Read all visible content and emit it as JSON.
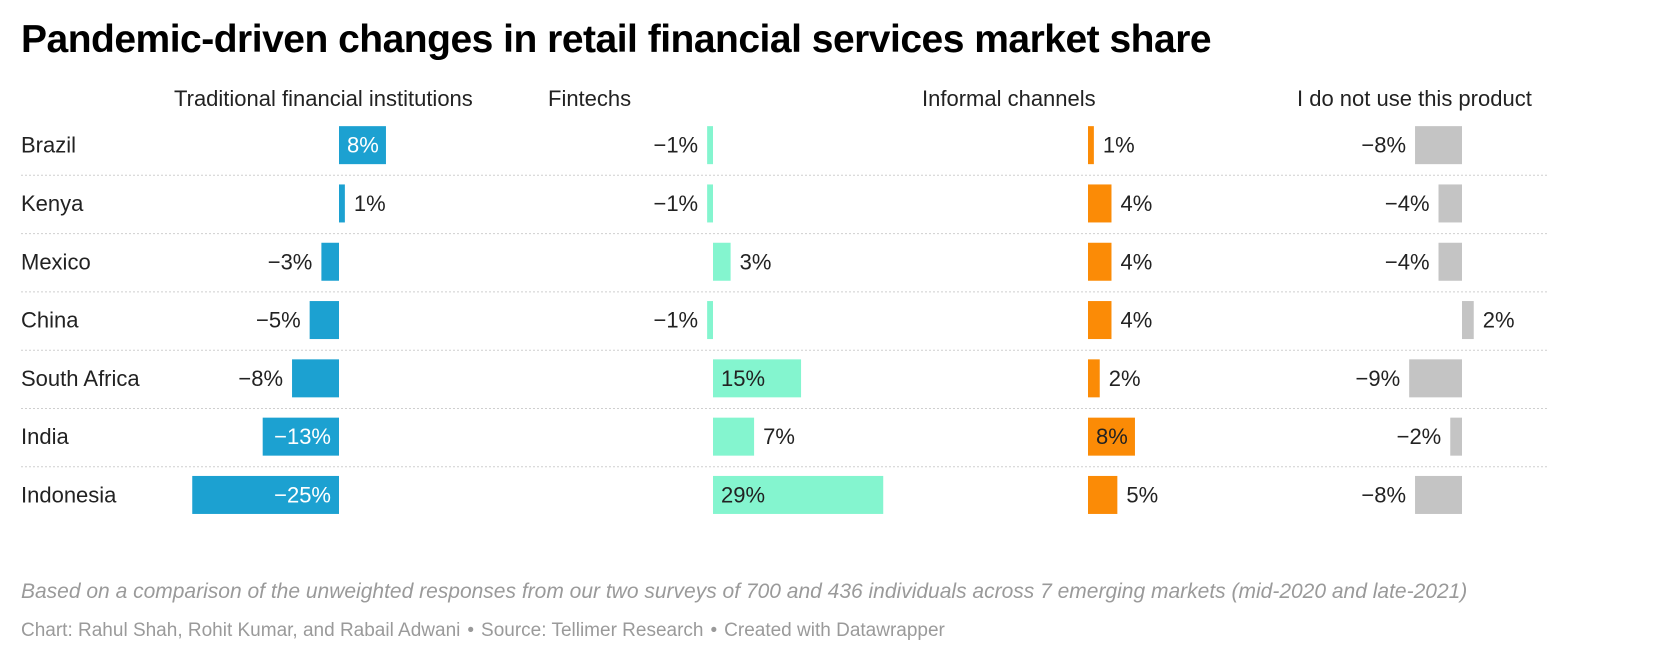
{
  "title": "Pandemic-driven changes in retail financial services market share",
  "notes": "Based on a comparison of the unweighted responses from our two surveys of 700 and 436 individuals across 7 emerging markets (mid-2020 and late-2021)",
  "credits": {
    "chart": "Chart: Rahul Shah, Rohit Kumar, and Rabail Adwani",
    "source": "Source: Tellimer Research",
    "tool": "Created with Datawrapper",
    "separator": "•"
  },
  "chart_data": {
    "type": "bar",
    "orientation": "horizontal",
    "unit": "%",
    "categories": [
      "Brazil",
      "Kenya",
      "Mexico",
      "China",
      "South Africa",
      "India",
      "Indonesia"
    ],
    "series": [
      {
        "name": "Traditional financial institutions",
        "color": "#1ca1d1",
        "values": [
          8,
          1,
          -3,
          -5,
          -8,
          -13,
          -25
        ]
      },
      {
        "name": "Fintechs",
        "color": "#84f5cf",
        "values": [
          -1,
          -1,
          3,
          -1,
          15,
          7,
          29
        ]
      },
      {
        "name": "Informal channels",
        "color": "#fb8b06",
        "values": [
          1,
          4,
          4,
          4,
          2,
          8,
          5
        ]
      },
      {
        "name": "I do not use this product",
        "color": "#c4c4c4",
        "values": [
          -8,
          -4,
          -4,
          2,
          -9,
          -2,
          -8
        ]
      }
    ],
    "grid": "dotted row separators",
    "legend": "panel headers"
  }
}
